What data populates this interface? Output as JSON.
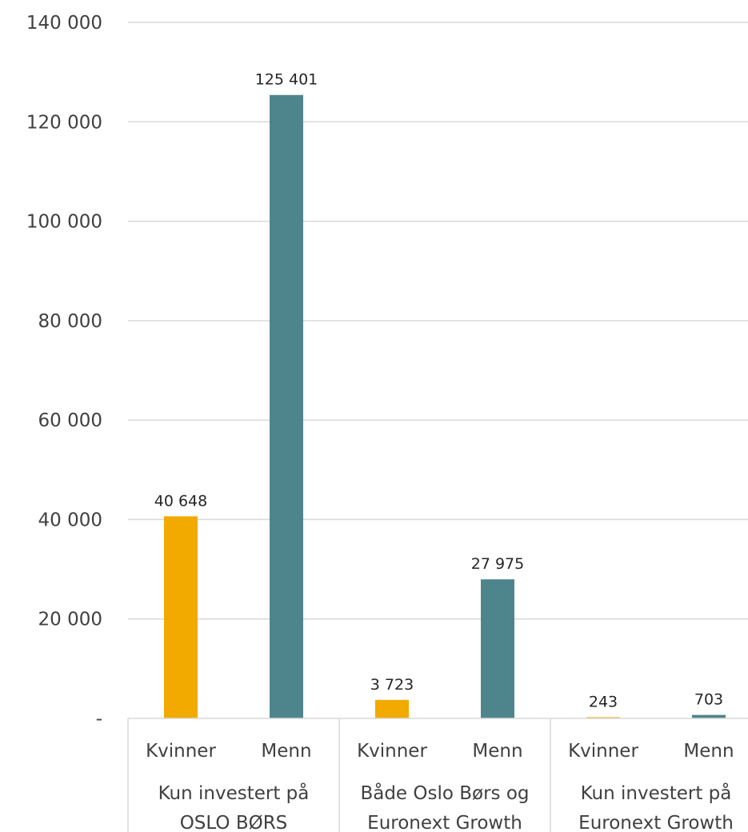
{
  "chart_data": {
    "type": "bar",
    "ylim": [
      0,
      140000
    ],
    "yticks": [
      {
        "value": 0,
        "label": "-"
      },
      {
        "value": 20000,
        "label": "20 000"
      },
      {
        "value": 40000,
        "label": "40 000"
      },
      {
        "value": 60000,
        "label": "60 000"
      },
      {
        "value": 80000,
        "label": "80 000"
      },
      {
        "value": 100000,
        "label": "100 000"
      },
      {
        "value": 120000,
        "label": "120 000"
      },
      {
        "value": 140000,
        "label": "140 000"
      }
    ],
    "grid": true,
    "groups": [
      {
        "label_lines": [
          "Kun investert på",
          "OSLO BØRS"
        ],
        "bars": [
          {
            "category": "Kvinner",
            "value": 40648,
            "label": "40 648",
            "color": "#f2a900"
          },
          {
            "category": "Menn",
            "value": 125401,
            "label": "125 401",
            "color": "#4e858c"
          }
        ]
      },
      {
        "label_lines": [
          "Både Oslo Børs og",
          "Euronext Growth"
        ],
        "bars": [
          {
            "category": "Kvinner",
            "value": 3723,
            "label": "3 723",
            "color": "#f2a900"
          },
          {
            "category": "Menn",
            "value": 27975,
            "label": "27 975",
            "color": "#4e858c"
          }
        ]
      },
      {
        "label_lines": [
          "Kun investert på",
          "Euronext Growth"
        ],
        "bars": [
          {
            "category": "Kvinner",
            "value": 243,
            "label": "243",
            "color": "#f2a900"
          },
          {
            "category": "Menn",
            "value": 703,
            "label": "703",
            "color": "#4e858c"
          }
        ]
      }
    ]
  }
}
